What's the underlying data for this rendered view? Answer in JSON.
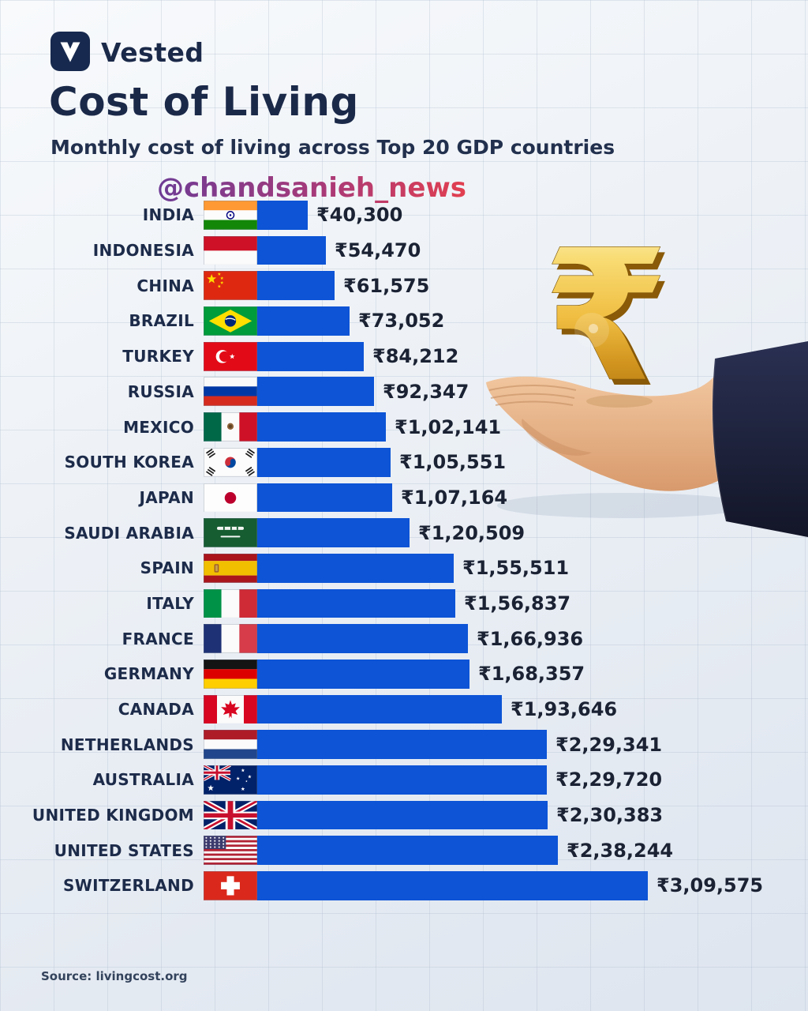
{
  "header": {
    "brand": "Vested",
    "title": "Cost of Living",
    "subtitle": "Monthly cost of living across Top 20 GDP countries",
    "watermark": "@chandsanieh_news"
  },
  "footer": {
    "source": "Source: livingcost.org"
  },
  "colors": {
    "bar": "#0D54D6",
    "title_text": "#1B2949",
    "value_text": "#1A2233",
    "background_top": "#F8FAFC",
    "background_bottom": "#DEE5EF",
    "watermark_gradient": [
      "#5E2D91",
      "#A62D6E",
      "#E8333F"
    ],
    "gold": "#EDBB3F",
    "sleeve": "#1A1F38",
    "skin": "#E9B58C"
  },
  "chart_data": {
    "type": "bar",
    "orientation": "horizontal",
    "title": "Cost of Living",
    "subtitle": "Monthly cost of living across Top 20 GDP countries",
    "unit": "INR (₹) per month",
    "source": "livingcost.org",
    "xlim": [
      0,
      309575
    ],
    "legend": null,
    "grid": "subtle background squares",
    "categories": [
      "INDIA",
      "INDONESIA",
      "CHINA",
      "BRAZIL",
      "TURKEY",
      "RUSSIA",
      "MEXICO",
      "SOUTH KOREA",
      "JAPAN",
      "SAUDI ARABIA",
      "SPAIN",
      "ITALY",
      "FRANCE",
      "GERMANY",
      "CANADA",
      "NETHERLANDS",
      "AUSTRALIA",
      "UNITED KINGDOM",
      "UNITED STATES",
      "SWITZERLAND"
    ],
    "values": [
      40300,
      54470,
      61575,
      73052,
      84212,
      92347,
      102141,
      105551,
      107164,
      120509,
      155511,
      156837,
      166936,
      168357,
      193646,
      229341,
      229720,
      230383,
      238244,
      309575
    ],
    "value_labels": [
      "₹40,300",
      "₹54,470",
      "₹61,575",
      "₹73,052",
      "₹84,212",
      "₹92,347",
      "₹1,02,141",
      "₹1,05,551",
      "₹1,07,164",
      "₹1,20,509",
      "₹1,55,511",
      "₹1,56,837",
      "₹1,66,936",
      "₹1,68,357",
      "₹1,93,646",
      "₹2,29,341",
      "₹2,29,720",
      "₹2,30,383",
      "₹2,38,244",
      "₹3,09,575"
    ],
    "flags": [
      "india",
      "indonesia",
      "china",
      "brazil",
      "turkey",
      "russia",
      "mexico",
      "south-korea",
      "japan",
      "saudi-arabia",
      "spain",
      "italy",
      "france",
      "germany",
      "canada",
      "netherlands",
      "australia",
      "united-kingdom",
      "united-states",
      "switzerland"
    ]
  }
}
